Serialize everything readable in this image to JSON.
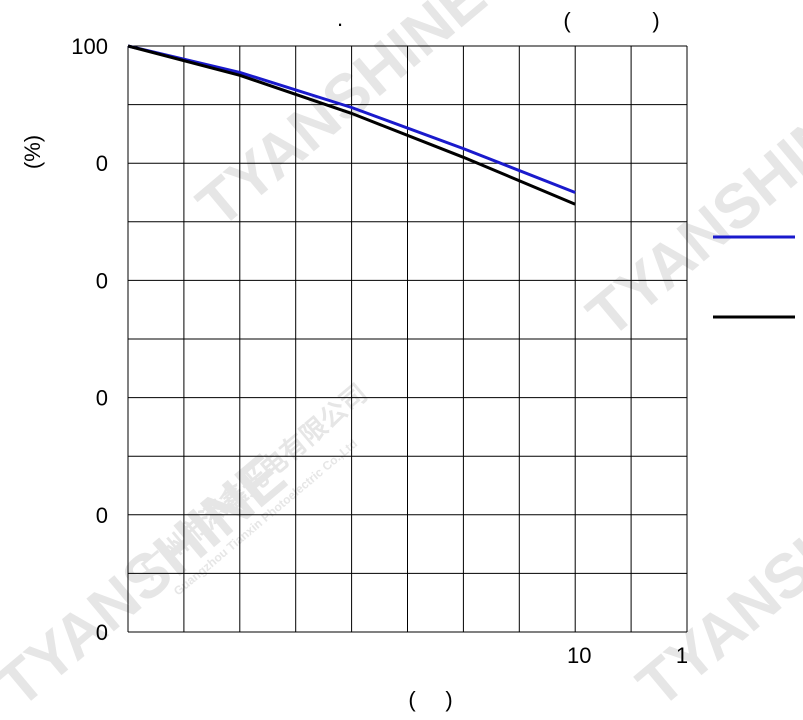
{
  "chart_data": {
    "type": "line",
    "title_fragments": [
      ".",
      "(",
      ")"
    ],
    "ylabel": "(%)",
    "xlabel_fragments": [
      "(",
      ")"
    ],
    "y_tick_labels": [
      "100",
      "0",
      "0",
      "0",
      "0",
      "0"
    ],
    "x_tick_labels": [
      "10",
      "1"
    ],
    "ylim": [
      0,
      100
    ],
    "grid": true,
    "legend_position": "right",
    "series": [
      {
        "color": "#1a1acc",
        "x": [
          0,
          2,
          4,
          6,
          8
        ],
        "y": [
          100,
          95.5,
          89.5,
          82.5,
          75
        ]
      },
      {
        "color": "#000000",
        "x": [
          0,
          2,
          4,
          6,
          8
        ],
        "y": [
          100,
          95,
          88.5,
          81,
          73
        ]
      }
    ]
  },
  "watermark": {
    "brand": "TYANSHINE",
    "company_cn": "广州市添鑫光电有限公司",
    "company_en": "Guangzhou Tianxin Photoelectric Co.,Ltd"
  }
}
